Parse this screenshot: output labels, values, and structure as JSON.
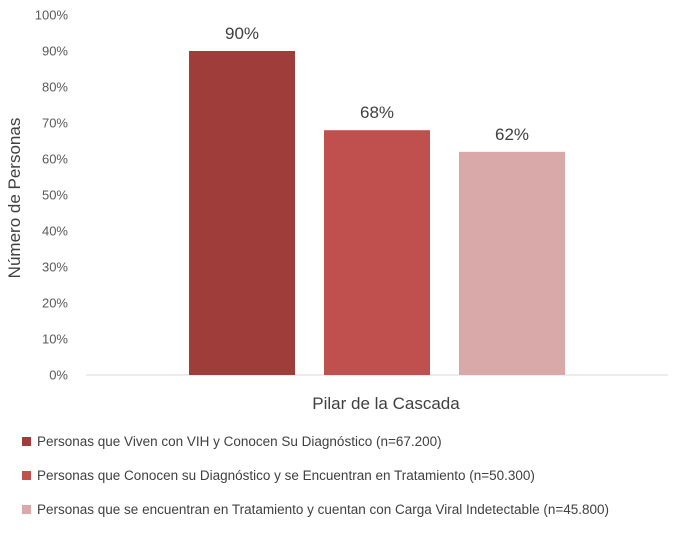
{
  "chart_data": {
    "type": "bar",
    "categories": [
      "Personas que Viven con VIH y Conocen Su Diagnóstico (n=67.200)",
      "Personas que Conocen su Diagnóstico y se Encuentran en Tratamiento (n=50.300)",
      "Personas que se encuentran en Tratamiento y cuentan con Carga Viral Indetectable (n=45.800)"
    ],
    "values": [
      90,
      68,
      62
    ],
    "data_labels": [
      "90%",
      "68%",
      "62%"
    ],
    "colors": [
      "#9e3d3a",
      "#c0504d",
      "#d9a8a8"
    ],
    "xlabel": "Pilar de la Cascada",
    "ylabel": "Número de Personas",
    "ylim": [
      0,
      100
    ],
    "yticks": [
      "0%",
      "10%",
      "20%",
      "30%",
      "40%",
      "50%",
      "60%",
      "70%",
      "80%",
      "90%",
      "100%"
    ],
    "grid": false,
    "legend_position": "bottom"
  }
}
